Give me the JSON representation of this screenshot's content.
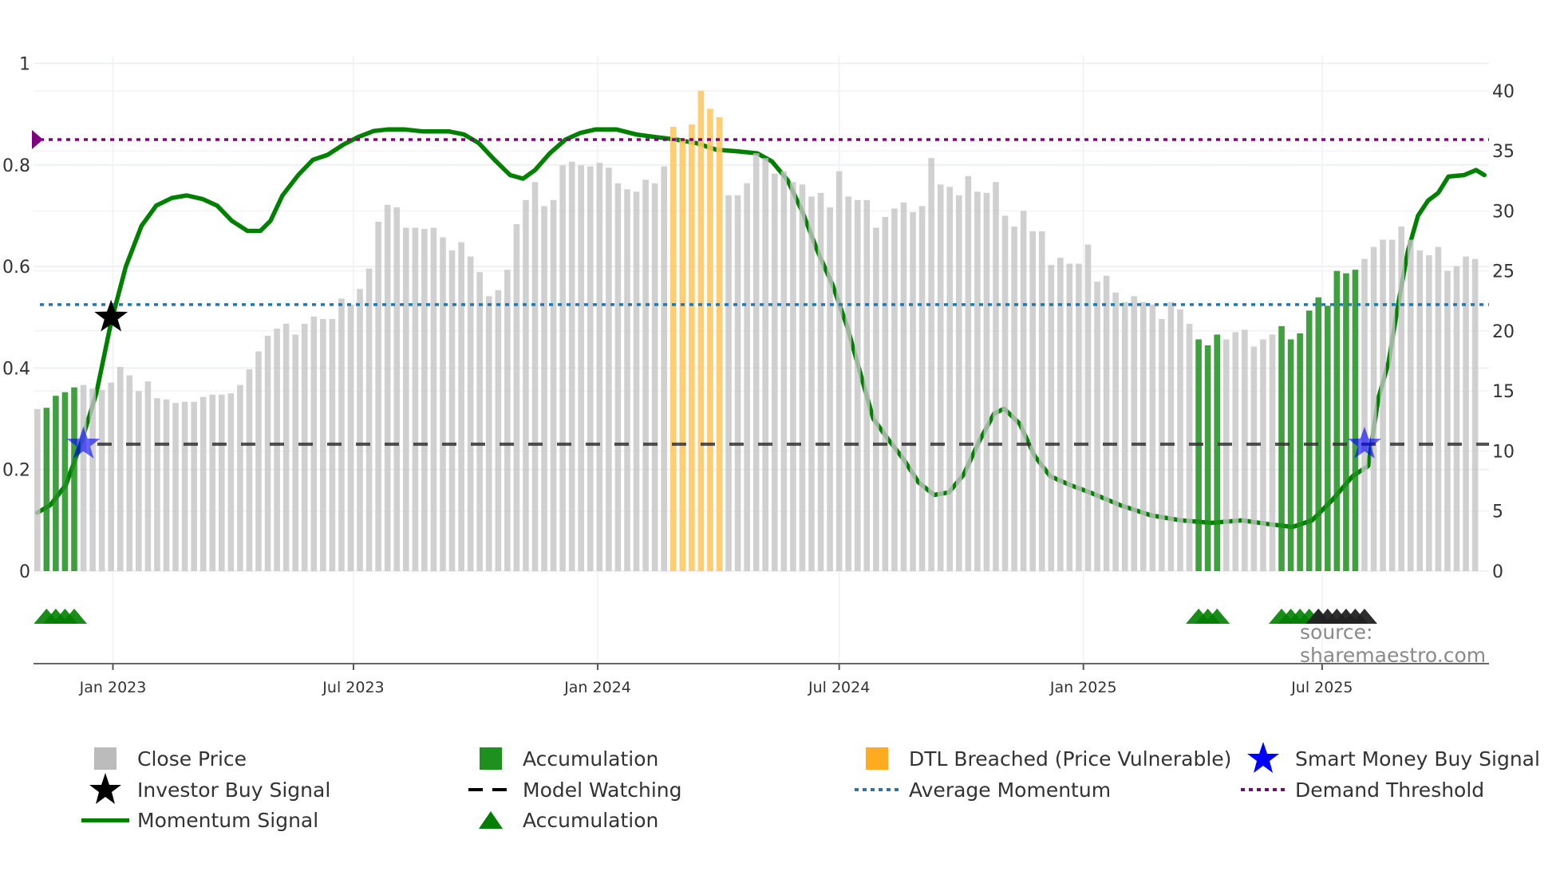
{
  "chart_data": {
    "type": "bar",
    "left_axis": {
      "ylim": [
        -0.18,
        1.0
      ],
      "ticks": [
        "0",
        "0.2",
        "0.4",
        "0.6",
        "0.8",
        "1"
      ],
      "tick_values": [
        0,
        0.2,
        0.4,
        0.6,
        0.8,
        1
      ]
    },
    "right_axis": {
      "ylim": [
        0,
        40
      ],
      "ticks": [
        "0",
        "5",
        "10",
        "15",
        "20",
        "25",
        "30",
        "35",
        "40"
      ],
      "tick_values": [
        0,
        5,
        10,
        15,
        20,
        25,
        30,
        35,
        40
      ]
    },
    "x_ticks": [
      {
        "label": "Jan 2023",
        "week": 8.2
      },
      {
        "label": "Jul 2023",
        "week": 34.3
      },
      {
        "label": "Jan 2024",
        "week": 60.8
      },
      {
        "label": "Jul 2024",
        "week": 87
      },
      {
        "label": "Jan 2025",
        "week": 113.5
      },
      {
        "label": "Jul 2025",
        "week": 139.4
      }
    ],
    "close_price": [
      13.5,
      13.6,
      14.6,
      14.9,
      15.3,
      15.5,
      15.2,
      15.1,
      15.7,
      17.0,
      16.3,
      15.0,
      15.8,
      14.4,
      14.3,
      14.0,
      14.1,
      14.1,
      14.5,
      14.7,
      14.7,
      14.8,
      15.5,
      16.8,
      18.3,
      19.6,
      20.2,
      20.6,
      19.7,
      20.6,
      21.2,
      21.0,
      21.0,
      22.7,
      22.2,
      23.5,
      25.2,
      29.1,
      30.5,
      30.3,
      28.6,
      28.6,
      28.5,
      28.6,
      27.8,
      26.7,
      27.4,
      26.2,
      24.9,
      22.9,
      23.4,
      25.1,
      28.9,
      30.9,
      32.4,
      30.4,
      30.9,
      33.8,
      34.1,
      33.8,
      33.7,
      34.0,
      33.6,
      32.3,
      31.8,
      31.6,
      32.6,
      32.3,
      33.7,
      37.0,
      36.0,
      37.2,
      40.0,
      38.5,
      37.8,
      31.3,
      31.3,
      32.3,
      34.8,
      34.4,
      33.1,
      33.3,
      32.4,
      32.2,
      31.2,
      31.5,
      30.3,
      33.3,
      31.2,
      30.9,
      30.9,
      28.6,
      29.5,
      30.2,
      30.7,
      29.9,
      30.4,
      34.4,
      32.2,
      32.0,
      31.3,
      32.9,
      31.6,
      31.5,
      32.4,
      29.6,
      28.7,
      30.0,
      28.3,
      28.3,
      25.5,
      26.1,
      25.6,
      25.6,
      27.2,
      24.1,
      24.6,
      23.2,
      22.4,
      22.9,
      22.4,
      22.2,
      21.0,
      22.4,
      21.8,
      20.6,
      19.3,
      18.8,
      19.7,
      19.3,
      19.9,
      20.1,
      18.7,
      19.3,
      19.7,
      20.4,
      19.3,
      19.8,
      21.7,
      22.8,
      22.1,
      25.0,
      24.8,
      25.1,
      26.0,
      27.0,
      27.6,
      27.6,
      28.7,
      27.6,
      26.7,
      26.3,
      27.0,
      25.0,
      25.4,
      26.2,
      26.0
    ],
    "accumulation_weeks": [
      1,
      2,
      3,
      4,
      126,
      127,
      128,
      135,
      136,
      137,
      138,
      139,
      140,
      141,
      142,
      143
    ],
    "dtl_breached_weeks": [
      69,
      70,
      71,
      72,
      73,
      74
    ],
    "momentum": [
      [
        0,
        0.115
      ],
      [
        1.4,
        0.13
      ],
      [
        3.1,
        0.17
      ],
      [
        4.7,
        0.25
      ],
      [
        6.4,
        0.35
      ],
      [
        8,
        0.49
      ],
      [
        9.6,
        0.6
      ],
      [
        11.3,
        0.68
      ],
      [
        12.9,
        0.72
      ],
      [
        14.6,
        0.735
      ],
      [
        16.2,
        0.74
      ],
      [
        17.9,
        0.733
      ],
      [
        19.5,
        0.72
      ],
      [
        21.1,
        0.69
      ],
      [
        22.8,
        0.67
      ],
      [
        24.2,
        0.67
      ],
      [
        25.3,
        0.69
      ],
      [
        26.6,
        0.74
      ],
      [
        28.3,
        0.78
      ],
      [
        29.9,
        0.81
      ],
      [
        31.5,
        0.82
      ],
      [
        33.2,
        0.84
      ],
      [
        34.8,
        0.855
      ],
      [
        36.5,
        0.867
      ],
      [
        38.1,
        0.87
      ],
      [
        39.8,
        0.87
      ],
      [
        41.9,
        0.866
      ],
      [
        44.7,
        0.866
      ],
      [
        46.3,
        0.86
      ],
      [
        47.9,
        0.843
      ],
      [
        49.6,
        0.81
      ],
      [
        51.3,
        0.78
      ],
      [
        52.7,
        0.773
      ],
      [
        54,
        0.79
      ],
      [
        55.6,
        0.823
      ],
      [
        57.3,
        0.85
      ],
      [
        58.9,
        0.863
      ],
      [
        60.6,
        0.87
      ],
      [
        62.8,
        0.87
      ],
      [
        65,
        0.86
      ],
      [
        67.1,
        0.855
      ],
      [
        69.3,
        0.85
      ],
      [
        71.5,
        0.843
      ],
      [
        73.7,
        0.83
      ],
      [
        75.9,
        0.827
      ],
      [
        78.1,
        0.823
      ],
      [
        79.7,
        0.807
      ],
      [
        81.4,
        0.77
      ],
      [
        83,
        0.708
      ],
      [
        84.7,
        0.628
      ],
      [
        86.3,
        0.563
      ],
      [
        87.9,
        0.48
      ],
      [
        89.6,
        0.37
      ],
      [
        90.7,
        0.3
      ],
      [
        92.3,
        0.26
      ],
      [
        94,
        0.22
      ],
      [
        95.6,
        0.175
      ],
      [
        97.3,
        0.15
      ],
      [
        98.9,
        0.155
      ],
      [
        100.5,
        0.19
      ],
      [
        102.2,
        0.256
      ],
      [
        103.8,
        0.31
      ],
      [
        104.9,
        0.32
      ],
      [
        106.6,
        0.29
      ],
      [
        108.2,
        0.227
      ],
      [
        109.9,
        0.187
      ],
      [
        112,
        0.17
      ],
      [
        114.2,
        0.155
      ],
      [
        117.5,
        0.13
      ],
      [
        120.8,
        0.11
      ],
      [
        124.1,
        0.1
      ],
      [
        127.4,
        0.095
      ],
      [
        130.7,
        0.1
      ],
      [
        133.4,
        0.093
      ],
      [
        136.2,
        0.087
      ],
      [
        138.3,
        0.1
      ],
      [
        140.5,
        0.14
      ],
      [
        142.7,
        0.187
      ],
      [
        144.4,
        0.207
      ],
      [
        145.5,
        0.34
      ],
      [
        146.6,
        0.41
      ],
      [
        147.7,
        0.53
      ],
      [
        148.7,
        0.63
      ],
      [
        149.8,
        0.7
      ],
      [
        150.9,
        0.73
      ],
      [
        152,
        0.745
      ],
      [
        153.1,
        0.777
      ],
      [
        154.8,
        0.78
      ],
      [
        156.1,
        0.79
      ],
      [
        157,
        0.78
      ]
    ],
    "demand_threshold": 0.85,
    "average_momentum": 0.525,
    "model_watching": 0.25,
    "investor_buy_signals": [
      [
        8,
        0.5
      ]
    ],
    "smart_money_buy_signals": [
      [
        5,
        0.25
      ],
      [
        144,
        0.25
      ]
    ],
    "accumulation_markers_green": [
      1,
      2,
      3,
      4,
      126,
      127,
      128,
      135,
      136,
      137,
      138,
      139
    ],
    "accumulation_markers_black": [
      139,
      140,
      141,
      142,
      143,
      144
    ],
    "legend_placement": "bottom",
    "grid": true
  },
  "legend": {
    "close_price": "Close Price",
    "accumulation_bar": "Accumulation",
    "dtl_breached": "DTL Breached (Price Vulnerable)",
    "smart_money": "Smart Money Buy Signal",
    "investor_buy": "Investor Buy Signal",
    "model_watching": "Model Watching",
    "average_momentum": "Average Momentum",
    "demand_threshold": "Demand Threshold",
    "momentum_signal": "Momentum Signal",
    "accumulation_marker": "Accumulation"
  },
  "source": "source: sharemaestro.com",
  "colors": {
    "gray": "#c4c4c4",
    "green": "#1f8f1f",
    "orange": "#ffc864",
    "momentum": "#008000",
    "purple": "#800080",
    "blue": "#1f77b4",
    "smart": "#0000ff"
  }
}
